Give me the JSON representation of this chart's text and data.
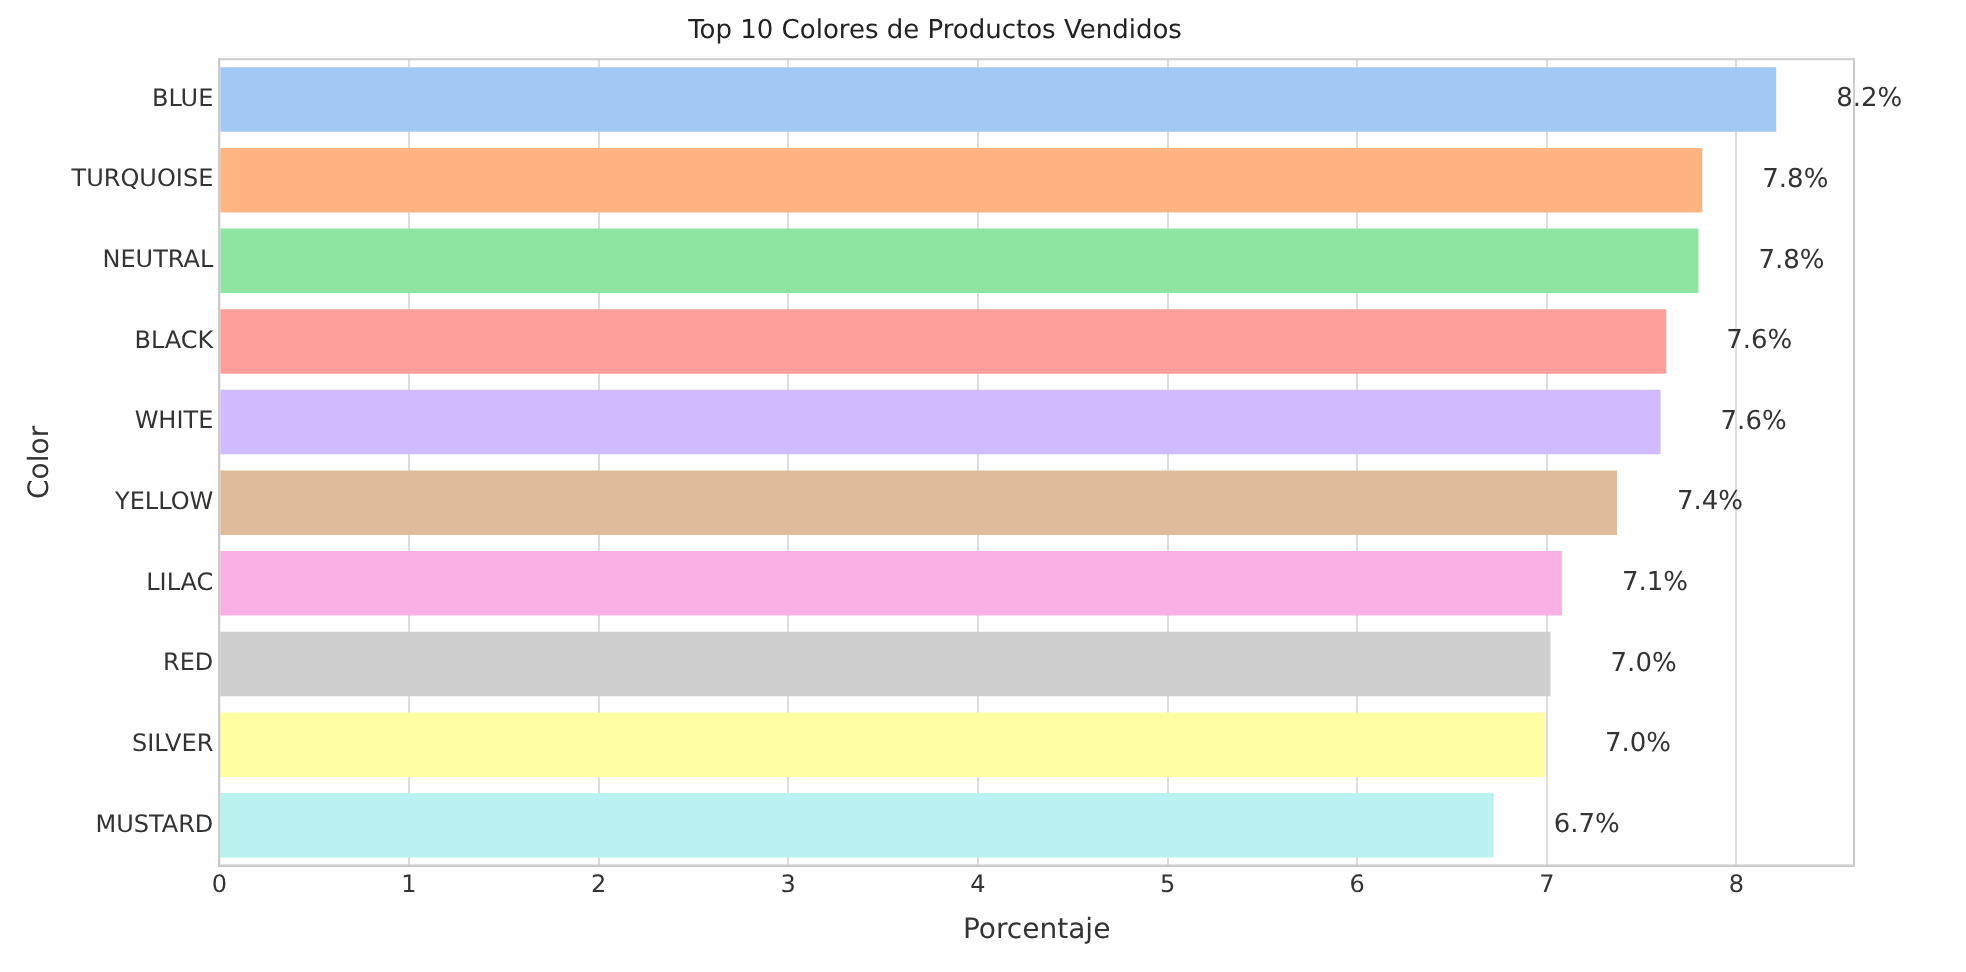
{
  "chart_data": {
    "type": "bar",
    "orientation": "horizontal",
    "title": "Top 10 Colores de Productos Vendidos",
    "xlabel": "Porcentaje",
    "ylabel": "Color",
    "categories": [
      "BLUE",
      "TURQUOISE",
      "NEUTRAL",
      "BLACK",
      "WHITE",
      "YELLOW",
      "LILAC",
      "RED",
      "SILVER",
      "MUSTARD"
    ],
    "values": [
      8.21,
      7.82,
      7.8,
      7.63,
      7.6,
      7.37,
      7.08,
      7.02,
      6.99,
      6.72
    ],
    "value_labels": [
      "8.2%",
      "7.8%",
      "7.8%",
      "7.6%",
      "7.6%",
      "7.4%",
      "7.1%",
      "7.0%",
      "7.0%",
      "6.7%"
    ],
    "colors": [
      "#a1c9f4",
      "#ffb482",
      "#8de5a1",
      "#ff9f9b",
      "#d0bbff",
      "#debb9b",
      "#fab0e4",
      "#cfcfcf",
      "#fffea3",
      "#b9f2f0"
    ],
    "xlim": [
      0,
      8.62
    ],
    "xticks": [
      0,
      1,
      2,
      3,
      4,
      5,
      6,
      7,
      8
    ],
    "grid": "x",
    "legend": false
  }
}
